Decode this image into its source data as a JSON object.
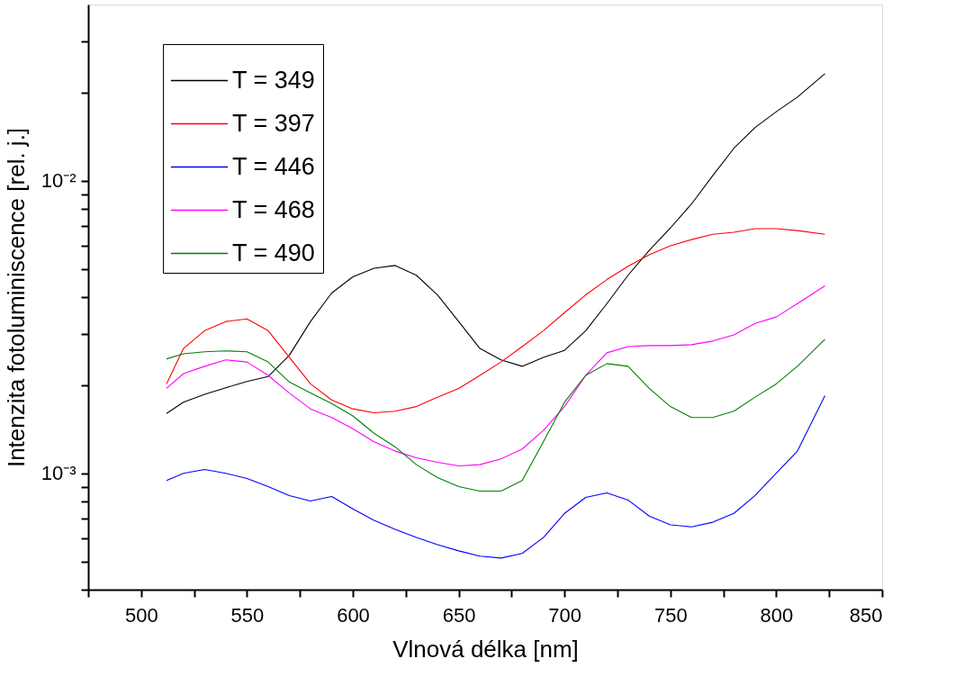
{
  "chart_data": {
    "type": "line",
    "xlabel": "Vlnová délka [nm]",
    "ylabel": "Intenzita fotoluminiscence [rel. j.]",
    "log": "y",
    "grid": false,
    "legend": "top left",
    "line_style": "solid",
    "marker": "none",
    "xlim": [
      475,
      850
    ],
    "xticks": [
      {
        "value": 475,
        "label": null
      },
      500,
      {
        "value": 525,
        "label": null
      },
      550,
      {
        "value": 575,
        "label": null
      },
      600,
      {
        "value": 625,
        "label": null
      },
      650,
      {
        "value": 675,
        "label": null
      },
      700,
      {
        "value": 725,
        "label": null
      },
      750,
      {
        "value": 775,
        "label": null
      },
      800,
      {
        "value": 825,
        "label": null
      },
      850
    ],
    "ylim": [
      0.0004,
      0.04
    ],
    "yticks": [
      {
        "value": 0.0004,
        "label": null
      },
      {
        "value": 0.0005,
        "label": null
      },
      {
        "value": 0.0006,
        "label": null
      },
      {
        "value": 0.0007,
        "label": null
      },
      {
        "value": 0.0008,
        "label": null
      },
      {
        "value": 0.0009,
        "label": null
      },
      {
        "value": 0.001,
        "label": "10⁻³"
      },
      {
        "value": 0.002,
        "label": null
      },
      {
        "value": 0.003,
        "label": null
      },
      {
        "value": 0.004,
        "label": null
      },
      {
        "value": 0.005,
        "label": null
      },
      {
        "value": 0.006,
        "label": null
      },
      {
        "value": 0.007,
        "label": null
      },
      {
        "value": 0.008,
        "label": null
      },
      {
        "value": 0.009,
        "label": null
      },
      {
        "value": 0.01,
        "label": "10⁻²"
      },
      {
        "value": 0.02,
        "label": null
      },
      {
        "value": 0.03,
        "label": null
      }
    ],
    "x": [
      512,
      520,
      530,
      540,
      550,
      560,
      570,
      580,
      590,
      600,
      610,
      620,
      630,
      640,
      650,
      660,
      670,
      680,
      690,
      700,
      710,
      720,
      730,
      740,
      750,
      760,
      770,
      780,
      790,
      800,
      810,
      823
    ],
    "series": [
      {
        "name": "T = 349",
        "color": "#000000",
        "values": [
          0.0016,
          0.00175,
          0.00186,
          0.00196,
          0.00206,
          0.00214,
          0.00253,
          0.0033,
          0.00413,
          0.00469,
          0.00502,
          0.00513,
          0.00475,
          0.00407,
          0.0033,
          0.00267,
          0.00244,
          0.00232,
          0.00249,
          0.00263,
          0.00307,
          0.0038,
          0.00475,
          0.00578,
          0.00689,
          0.00833,
          0.0104,
          0.0129,
          0.0152,
          0.0172,
          0.0193,
          0.0232
        ]
      },
      {
        "name": "T = 397",
        "color": "#ff0000",
        "values": [
          0.00202,
          0.00267,
          0.00307,
          0.0033,
          0.00337,
          0.00307,
          0.00249,
          0.00202,
          0.00178,
          0.00166,
          0.00161,
          0.00163,
          0.00169,
          0.00182,
          0.00195,
          0.00216,
          0.0024,
          0.00271,
          0.00307,
          0.00354,
          0.00407,
          0.00459,
          0.0051,
          0.00558,
          0.00599,
          0.00629,
          0.00656,
          0.00666,
          0.00685,
          0.00685,
          0.00675,
          0.00656
        ]
      },
      {
        "name": "T = 446",
        "color": "#0000ff",
        "values": [
          0.000945,
          0.001,
          0.00103,
          0.001,
          0.000959,
          0.0009,
          0.000839,
          0.000804,
          0.000833,
          0.000755,
          0.00069,
          0.000643,
          0.000603,
          0.00057,
          0.000543,
          0.000521,
          0.000513,
          0.000532,
          0.000603,
          0.000729,
          0.000827,
          0.000857,
          0.00081,
          0.000714,
          0.000666,
          0.000656,
          0.00068,
          0.000729,
          0.000839,
          0.001,
          0.00119,
          0.00184
        ]
      },
      {
        "name": "T = 468",
        "color": "#ff00ff",
        "values": [
          0.00195,
          0.00219,
          0.00232,
          0.00244,
          0.0024,
          0.00216,
          0.00188,
          0.00166,
          0.00155,
          0.00142,
          0.00128,
          0.00119,
          0.00113,
          0.00109,
          0.00106,
          0.00107,
          0.00112,
          0.00121,
          0.0014,
          0.00169,
          0.00216,
          0.00258,
          0.00271,
          0.00273,
          0.00273,
          0.00275,
          0.00283,
          0.00297,
          0.00325,
          0.00342,
          0.0038,
          0.00437
        ]
      },
      {
        "name": "T = 490",
        "color": "#008000",
        "values": [
          0.00246,
          0.00256,
          0.0026,
          0.00262,
          0.0026,
          0.0024,
          0.00205,
          0.00188,
          0.00173,
          0.00157,
          0.00137,
          0.00123,
          0.00107,
          0.000966,
          0.0009,
          0.000869,
          0.000869,
          0.000945,
          0.00128,
          0.00175,
          0.00216,
          0.00237,
          0.00232,
          0.00195,
          0.00169,
          0.00155,
          0.00155,
          0.00163,
          0.00182,
          0.00202,
          0.00232,
          0.00287
        ]
      }
    ]
  }
}
